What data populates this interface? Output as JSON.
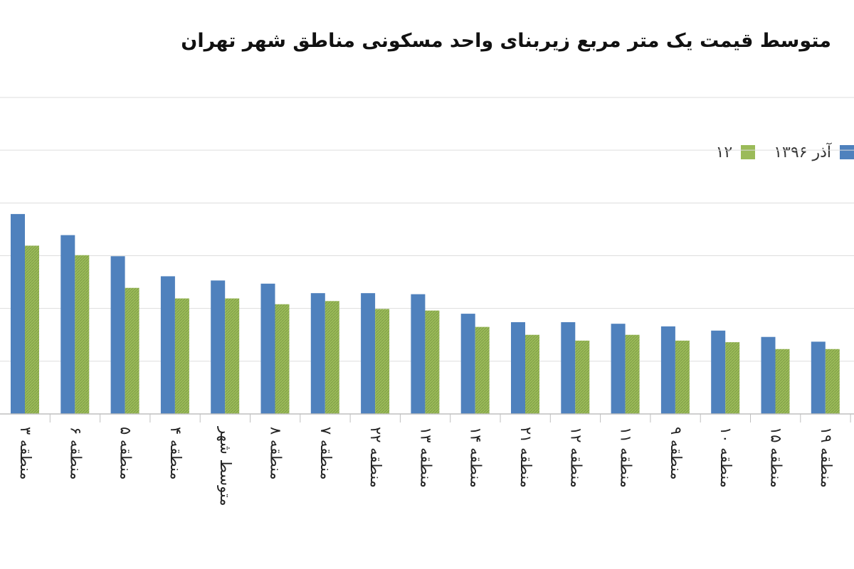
{
  "chart_data": {
    "type": "bar",
    "title": "متوسط قیمت یک متر مربع زیربنای واحد مسکونی مناطق شهر تهران",
    "categories": [
      "منطقه ۳",
      "منطقه ۶",
      "منطقه ۵",
      "منطقه ۴",
      "متوسط شهر",
      "منطقه ۸",
      "منطقه ۷",
      "منطقه ۲۲",
      "منطقه ۱۳",
      "منطقه ۱۴",
      "منطقه ۲۱",
      "منطقه ۱۲",
      "منطقه ۱۱",
      "منطقه ۹",
      "منطقه ۱۰",
      "منطقه ۱۵",
      "منطقه ۱۹"
    ],
    "series": [
      {
        "name": "آذر ۱۳۹۶",
        "color": "#4f81bd",
        "values": [
          3.79,
          3.39,
          2.99,
          2.61,
          2.53,
          2.47,
          2.29,
          2.29,
          2.27,
          1.9,
          1.74,
          1.74,
          1.71,
          1.66,
          1.58,
          1.46,
          1.37
        ]
      },
      {
        "name": "۱۲",
        "color": "#9bbb59",
        "values": [
          3.19,
          3.01,
          2.39,
          2.19,
          2.19,
          2.08,
          2.14,
          1.99,
          1.96,
          1.65,
          1.5,
          1.39,
          1.5,
          1.39,
          1.36,
          1.23,
          1.23
        ]
      }
    ],
    "ylim": [
      0,
      6
    ],
    "grid": true,
    "legend": "top-right"
  }
}
